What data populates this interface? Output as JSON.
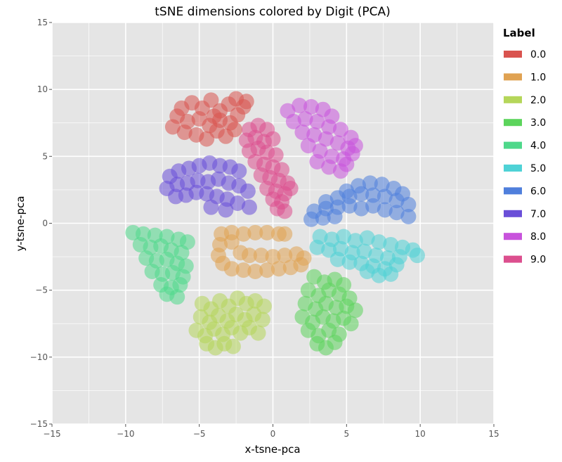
{
  "chart_data": {
    "type": "scatter",
    "title": "tSNE dimensions colored by Digit (PCA)",
    "xlabel": "x-tsne-pca",
    "ylabel": "y-tsne-pca",
    "xlim": [
      -15,
      15
    ],
    "ylim": [
      -15,
      15
    ],
    "xticks": [
      "−15",
      "−10",
      "−5",
      "0",
      "5",
      "10",
      "15"
    ],
    "yticks": [
      "−15",
      "−10",
      "−5",
      "0",
      "5",
      "10",
      "15"
    ],
    "grid": true,
    "legend": {
      "title": "Label",
      "placement": "right"
    },
    "series": [
      {
        "name": "0.0",
        "color": "#d9534f",
        "points": [
          [
            -5.5,
            9.0
          ],
          [
            -4.8,
            8.6
          ],
          [
            -4.2,
            9.2
          ],
          [
            -3.6,
            8.4
          ],
          [
            -3.0,
            8.9
          ],
          [
            -2.5,
            9.3
          ],
          [
            -2.0,
            8.7
          ],
          [
            -1.8,
            9.1
          ],
          [
            -6.5,
            8.0
          ],
          [
            -5.8,
            7.6
          ],
          [
            -5.0,
            7.8
          ],
          [
            -4.3,
            7.3
          ],
          [
            -3.6,
            7.7
          ],
          [
            -2.9,
            7.5
          ],
          [
            -2.4,
            8.1
          ],
          [
            -6.8,
            7.2
          ],
          [
            -6.0,
            6.8
          ],
          [
            -5.2,
            6.6
          ],
          [
            -4.5,
            6.3
          ],
          [
            -3.8,
            6.9
          ],
          [
            -3.2,
            6.5
          ],
          [
            -2.6,
            7.0
          ],
          [
            -6.2,
            8.6
          ],
          [
            -4.0,
            8.0
          ]
        ]
      },
      {
        "name": "1.0",
        "color": "#e0a252",
        "points": [
          [
            -3.5,
            -0.8
          ],
          [
            -2.8,
            -0.7
          ],
          [
            -2.0,
            -0.8
          ],
          [
            -1.2,
            -0.7
          ],
          [
            -0.4,
            -0.7
          ],
          [
            0.4,
            -0.8
          ],
          [
            0.8,
            -0.8
          ],
          [
            -3.6,
            -1.6
          ],
          [
            -3.7,
            -2.4
          ],
          [
            -3.4,
            -3.0
          ],
          [
            -2.8,
            -3.4
          ],
          [
            -2.0,
            -3.5
          ],
          [
            -1.2,
            -3.6
          ],
          [
            -0.4,
            -3.5
          ],
          [
            0.4,
            -3.4
          ],
          [
            1.2,
            -3.3
          ],
          [
            1.9,
            -3.1
          ],
          [
            2.1,
            -2.6
          ],
          [
            1.6,
            -2.3
          ],
          [
            0.8,
            -2.4
          ],
          [
            0.0,
            -2.5
          ],
          [
            -0.8,
            -2.4
          ],
          [
            -1.6,
            -2.4
          ],
          [
            -2.8,
            -1.4
          ],
          [
            -2.2,
            -2.2
          ]
        ]
      },
      {
        "name": "2.0",
        "color": "#b5d65a",
        "points": [
          [
            -4.8,
            -6.0
          ],
          [
            -4.2,
            -6.4
          ],
          [
            -3.6,
            -5.8
          ],
          [
            -3.0,
            -6.2
          ],
          [
            -2.4,
            -5.6
          ],
          [
            -1.8,
            -6.0
          ],
          [
            -1.2,
            -5.8
          ],
          [
            -0.6,
            -6.2
          ],
          [
            -4.9,
            -7.0
          ],
          [
            -4.3,
            -7.4
          ],
          [
            -3.7,
            -6.9
          ],
          [
            -3.1,
            -7.3
          ],
          [
            -2.5,
            -6.8
          ],
          [
            -1.9,
            -7.2
          ],
          [
            -1.3,
            -6.8
          ],
          [
            -0.7,
            -7.2
          ],
          [
            -5.2,
            -8.0
          ],
          [
            -4.6,
            -8.4
          ],
          [
            -4.0,
            -7.9
          ],
          [
            -3.4,
            -8.3
          ],
          [
            -2.8,
            -7.8
          ],
          [
            -2.2,
            -8.2
          ],
          [
            -1.6,
            -7.8
          ],
          [
            -1.0,
            -8.2
          ],
          [
            -4.5,
            -9.0
          ],
          [
            -3.9,
            -9.3
          ],
          [
            -3.3,
            -9.0
          ],
          [
            -2.7,
            -9.2
          ]
        ]
      },
      {
        "name": "3.0",
        "color": "#5cd45c",
        "points": [
          [
            2.8,
            -4.0
          ],
          [
            3.5,
            -4.4
          ],
          [
            4.2,
            -4.2
          ],
          [
            4.8,
            -4.6
          ],
          [
            2.4,
            -5.0
          ],
          [
            3.1,
            -5.4
          ],
          [
            3.8,
            -5.0
          ],
          [
            4.5,
            -5.3
          ],
          [
            5.2,
            -5.6
          ],
          [
            2.2,
            -6.0
          ],
          [
            2.9,
            -6.4
          ],
          [
            3.6,
            -6.0
          ],
          [
            4.3,
            -6.3
          ],
          [
            5.0,
            -6.2
          ],
          [
            5.6,
            -6.5
          ],
          [
            2.0,
            -7.0
          ],
          [
            2.7,
            -7.4
          ],
          [
            3.4,
            -7.0
          ],
          [
            4.1,
            -7.3
          ],
          [
            4.8,
            -7.1
          ],
          [
            5.3,
            -7.5
          ],
          [
            2.4,
            -8.0
          ],
          [
            3.1,
            -8.4
          ],
          [
            3.8,
            -8.0
          ],
          [
            4.5,
            -8.3
          ],
          [
            3.0,
            -9.0
          ],
          [
            3.6,
            -9.3
          ],
          [
            4.2,
            -8.9
          ]
        ]
      },
      {
        "name": "4.0",
        "color": "#4ed88a",
        "points": [
          [
            -9.5,
            -0.7
          ],
          [
            -8.8,
            -0.8
          ],
          [
            -8.0,
            -0.9
          ],
          [
            -7.2,
            -1.0
          ],
          [
            -6.4,
            -1.2
          ],
          [
            -5.8,
            -1.4
          ],
          [
            -9.0,
            -1.6
          ],
          [
            -8.3,
            -1.8
          ],
          [
            -7.6,
            -1.7
          ],
          [
            -6.9,
            -2.0
          ],
          [
            -6.2,
            -2.2
          ],
          [
            -8.6,
            -2.6
          ],
          [
            -7.9,
            -2.8
          ],
          [
            -7.2,
            -2.7
          ],
          [
            -6.5,
            -3.0
          ],
          [
            -5.9,
            -3.2
          ],
          [
            -8.2,
            -3.6
          ],
          [
            -7.5,
            -3.8
          ],
          [
            -6.8,
            -3.7
          ],
          [
            -6.1,
            -4.0
          ],
          [
            -7.6,
            -4.6
          ],
          [
            -6.9,
            -4.8
          ],
          [
            -6.3,
            -4.6
          ],
          [
            -7.2,
            -5.3
          ],
          [
            -6.5,
            -5.5
          ]
        ]
      },
      {
        "name": "5.0",
        "color": "#4fd2d6",
        "points": [
          [
            3.2,
            -1.0
          ],
          [
            4.0,
            -1.2
          ],
          [
            4.8,
            -1.0
          ],
          [
            5.6,
            -1.3
          ],
          [
            6.4,
            -1.1
          ],
          [
            7.2,
            -1.4
          ],
          [
            8.0,
            -1.6
          ],
          [
            8.8,
            -1.8
          ],
          [
            9.5,
            -2.0
          ],
          [
            3.0,
            -1.8
          ],
          [
            3.8,
            -2.0
          ],
          [
            4.6,
            -1.9
          ],
          [
            5.4,
            -2.2
          ],
          [
            6.2,
            -2.1
          ],
          [
            7.0,
            -2.4
          ],
          [
            7.8,
            -2.6
          ],
          [
            8.6,
            -2.5
          ],
          [
            9.8,
            -2.4
          ],
          [
            4.4,
            -2.7
          ],
          [
            5.2,
            -2.9
          ],
          [
            6.0,
            -3.0
          ],
          [
            6.8,
            -3.2
          ],
          [
            7.6,
            -3.4
          ],
          [
            8.4,
            -3.1
          ],
          [
            6.4,
            -3.6
          ],
          [
            7.2,
            -3.9
          ],
          [
            8.0,
            -3.8
          ]
        ]
      },
      {
        "name": "6.0",
        "color": "#4f7fdc",
        "points": [
          [
            5.0,
            2.4
          ],
          [
            5.8,
            2.8
          ],
          [
            6.6,
            3.0
          ],
          [
            7.4,
            2.9
          ],
          [
            8.2,
            2.6
          ],
          [
            8.8,
            2.2
          ],
          [
            3.6,
            1.6
          ],
          [
            4.4,
            1.9
          ],
          [
            5.2,
            2.0
          ],
          [
            6.0,
            2.2
          ],
          [
            6.8,
            2.1
          ],
          [
            7.6,
            2.0
          ],
          [
            8.4,
            1.7
          ],
          [
            9.2,
            1.4
          ],
          [
            2.8,
            0.9
          ],
          [
            3.6,
            1.1
          ],
          [
            4.4,
            1.2
          ],
          [
            5.2,
            1.3
          ],
          [
            6.0,
            1.1
          ],
          [
            6.8,
            1.3
          ],
          [
            7.6,
            1.0
          ],
          [
            8.4,
            0.8
          ],
          [
            9.2,
            0.5
          ],
          [
            2.6,
            0.3
          ],
          [
            3.4,
            0.4
          ],
          [
            4.2,
            0.5
          ]
        ]
      },
      {
        "name": "7.0",
        "color": "#6a4fd8",
        "points": [
          [
            -7.0,
            3.5
          ],
          [
            -6.4,
            3.9
          ],
          [
            -5.7,
            4.1
          ],
          [
            -5.0,
            4.3
          ],
          [
            -4.3,
            4.5
          ],
          [
            -3.6,
            4.3
          ],
          [
            -2.9,
            4.2
          ],
          [
            -2.3,
            3.9
          ],
          [
            -7.2,
            2.6
          ],
          [
            -6.5,
            2.9
          ],
          [
            -5.8,
            3.0
          ],
          [
            -5.1,
            3.2
          ],
          [
            -4.4,
            3.1
          ],
          [
            -3.7,
            3.3
          ],
          [
            -3.0,
            3.0
          ],
          [
            -2.3,
            2.8
          ],
          [
            -1.7,
            2.4
          ],
          [
            -6.6,
            2.0
          ],
          [
            -5.9,
            2.1
          ],
          [
            -5.2,
            2.3
          ],
          [
            -4.5,
            2.2
          ],
          [
            -3.8,
            2.0
          ],
          [
            -3.1,
            1.8
          ],
          [
            -2.4,
            1.5
          ],
          [
            -1.6,
            1.2
          ],
          [
            -4.2,
            1.2
          ],
          [
            -3.2,
            1.0
          ]
        ]
      },
      {
        "name": "8.0",
        "color": "#c853dc",
        "points": [
          [
            1.0,
            8.4
          ],
          [
            1.8,
            8.8
          ],
          [
            2.6,
            8.7
          ],
          [
            3.4,
            8.5
          ],
          [
            4.0,
            8.0
          ],
          [
            1.4,
            7.6
          ],
          [
            2.2,
            7.8
          ],
          [
            3.0,
            7.6
          ],
          [
            3.8,
            7.2
          ],
          [
            4.6,
            7.0
          ],
          [
            5.3,
            6.4
          ],
          [
            2.0,
            6.8
          ],
          [
            2.8,
            6.6
          ],
          [
            3.6,
            6.3
          ],
          [
            4.4,
            6.0
          ],
          [
            5.1,
            5.6
          ],
          [
            5.6,
            5.8
          ],
          [
            2.4,
            5.8
          ],
          [
            3.2,
            5.4
          ],
          [
            4.0,
            5.0
          ],
          [
            4.8,
            4.8
          ],
          [
            5.4,
            5.2
          ],
          [
            3.0,
            4.6
          ],
          [
            3.8,
            4.2
          ],
          [
            4.6,
            3.9
          ],
          [
            5.0,
            4.4
          ]
        ]
      },
      {
        "name": "9.0",
        "color": "#dc4f8e",
        "points": [
          [
            -1.6,
            7.0
          ],
          [
            -1.0,
            7.3
          ],
          [
            -0.4,
            7.0
          ],
          [
            -1.8,
            6.2
          ],
          [
            -1.2,
            6.4
          ],
          [
            -0.6,
            6.1
          ],
          [
            0.0,
            6.3
          ],
          [
            -1.6,
            5.4
          ],
          [
            -1.0,
            5.6
          ],
          [
            -0.4,
            5.3
          ],
          [
            0.2,
            5.1
          ],
          [
            -1.2,
            4.6
          ],
          [
            -0.6,
            4.4
          ],
          [
            0.0,
            4.2
          ],
          [
            0.6,
            4.0
          ],
          [
            -0.8,
            3.6
          ],
          [
            -0.2,
            3.4
          ],
          [
            0.4,
            3.2
          ],
          [
            1.0,
            3.0
          ],
          [
            -0.4,
            2.6
          ],
          [
            0.2,
            2.4
          ],
          [
            0.8,
            2.2
          ],
          [
            1.2,
            2.6
          ],
          [
            0.0,
            1.8
          ],
          [
            0.6,
            1.6
          ],
          [
            0.8,
            0.9
          ],
          [
            0.3,
            1.1
          ]
        ]
      }
    ]
  }
}
